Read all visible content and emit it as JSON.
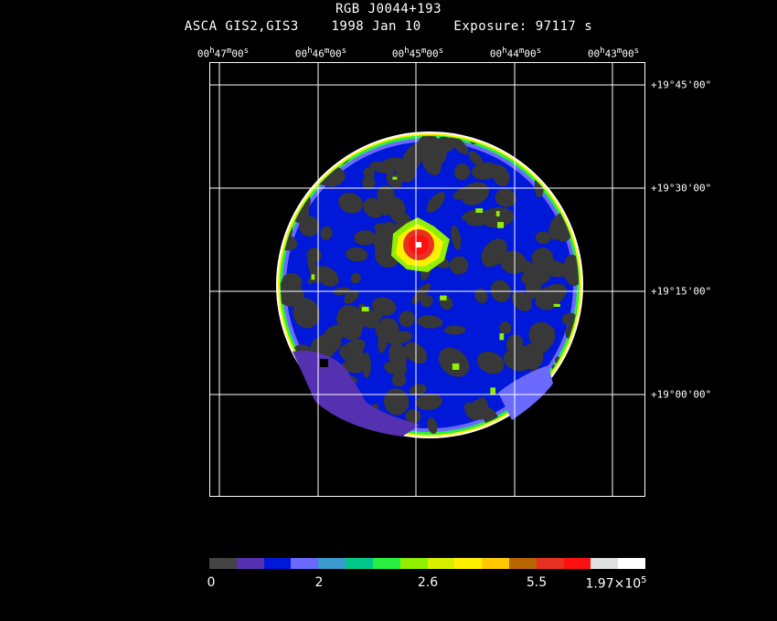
{
  "header": {
    "object": "RGB J0044+193",
    "info": "ASCA GIS2,GIS3    1998 Jan 10    Exposure: 97117 s"
  },
  "ra_axis": {
    "ticks": [
      {
        "h": "00",
        "m": "47",
        "s": "00"
      },
      {
        "h": "00",
        "m": "46",
        "s": "00"
      },
      {
        "h": "00",
        "m": "45",
        "s": "00"
      },
      {
        "h": "00",
        "m": "44",
        "s": "00"
      },
      {
        "h": "00",
        "m": "43",
        "s": "00"
      }
    ]
  },
  "dec_axis": {
    "ticks": [
      "+19°45'00\"",
      "+19°30'00\"",
      "+19°15'00\"",
      "+19°00'00\""
    ]
  },
  "colorbar": {
    "colors": [
      "#444444",
      "#5530b0",
      "#0018d8",
      "#6a6aff",
      "#3a9acf",
      "#00c88a",
      "#28f040",
      "#90f000",
      "#d8f000",
      "#fff000",
      "#ffc800",
      "#b86400",
      "#e83020",
      "#ff1010",
      "#e0e0e0",
      "#ffffff"
    ],
    "labels": {
      "min": "0",
      "l2": "2",
      "l3": "2.6",
      "l4": "5.5",
      "max_base": "1.97×10",
      "max_exp": "5"
    }
  },
  "image": {
    "colors": {
      "background": "#383838",
      "disk_blue": "#0018d8",
      "source_core": "#ff1010"
    }
  }
}
